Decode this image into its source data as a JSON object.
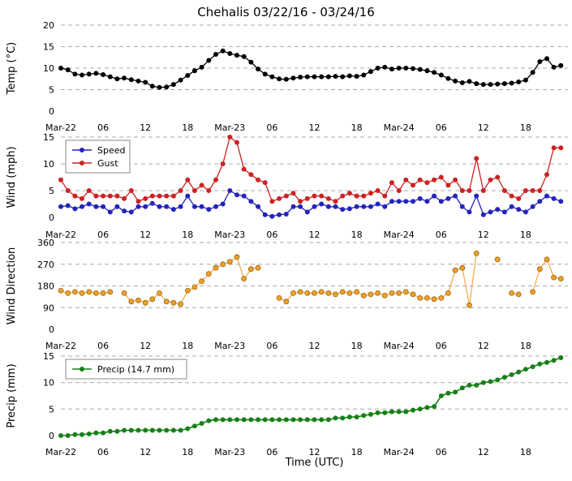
{
  "chart_data": {
    "type": "line",
    "title": "Chehalis 03/22/16 - 03/24/16",
    "xlabel": "Time (UTC)",
    "x_range": [
      0,
      72
    ],
    "x_ticks": [
      0,
      6,
      12,
      18,
      24,
      30,
      36,
      42,
      48,
      54,
      60,
      66
    ],
    "x_tick_labels": [
      "Mar-22",
      "06",
      "12",
      "18",
      "Mar-23",
      "06",
      "12",
      "18",
      "Mar-24",
      "06",
      "12",
      "18"
    ],
    "grid": "dashed-horizontal",
    "subplots": [
      {
        "name": "temperature",
        "ylabel": "Temp (°C)",
        "ylim": [
          0,
          20
        ],
        "yticks": [
          0,
          5,
          10,
          15,
          20
        ],
        "legend": null,
        "series": [
          {
            "name": "Temp",
            "color": "#000000",
            "values": [
              10.0,
              9.6,
              8.6,
              8.4,
              8.6,
              8.8,
              8.5,
              8.0,
              7.5,
              7.7,
              7.3,
              7.0,
              6.7,
              5.8,
              5.5,
              5.6,
              6.2,
              7.2,
              8.3,
              9.4,
              10.2,
              11.8,
              13.2,
              14.0,
              13.4,
              13.0,
              12.7,
              11.4,
              9.8,
              8.6,
              8.0,
              7.5,
              7.4,
              7.7,
              7.9,
              8.0,
              8.0,
              8.0,
              8.0,
              8.1,
              8.0,
              8.2,
              8.1,
              8.4,
              9.2,
              10.0,
              10.2,
              9.8,
              10.0,
              10.0,
              9.9,
              9.7,
              9.4,
              9.0,
              8.4,
              7.6,
              7.0,
              6.6,
              6.9,
              6.4,
              6.2,
              6.2,
              6.3,
              6.4,
              6.5,
              6.8,
              7.2,
              9.0,
              11.5,
              12.2,
              10.2,
              10.6
            ]
          }
        ]
      },
      {
        "name": "wind",
        "ylabel": "Wind (mph)",
        "ylim": [
          0,
          15
        ],
        "yticks": [
          0,
          5,
          10,
          15
        ],
        "legend": {
          "position": "top-left",
          "items": [
            "Speed",
            "Gust"
          ]
        },
        "series": [
          {
            "name": "Speed",
            "color": "#2424bb",
            "values": [
              2.0,
              2.2,
              1.6,
              2.0,
              2.5,
              2.0,
              2.0,
              1.0,
              2.0,
              1.2,
              1.0,
              2.0,
              2.0,
              2.6,
              2.0,
              2.0,
              1.5,
              2.0,
              4.0,
              2.0,
              2.0,
              1.5,
              2.0,
              2.5,
              5.0,
              4.2,
              4.0,
              3.0,
              2.0,
              0.5,
              0.2,
              0.5,
              0.6,
              2.0,
              2.0,
              1.0,
              2.0,
              2.5,
              2.0,
              2.0,
              1.5,
              1.6,
              2.0,
              2.0,
              2.0,
              2.5,
              2.0,
              3.0,
              3.0,
              3.0,
              3.0,
              3.5,
              3.0,
              4.0,
              3.0,
              3.5,
              4.0,
              2.0,
              1.0,
              4.0,
              0.5,
              1.0,
              1.5,
              1.0,
              2.0,
              1.5,
              1.0,
              2.0,
              3.0,
              4.0,
              3.5,
              3.0
            ]
          },
          {
            "name": "Gust",
            "color": "#cc2222",
            "values": [
              7.0,
              5.0,
              4.0,
              3.5,
              5.0,
              4.0,
              4.0,
              4.0,
              4.0,
              3.5,
              5.0,
              3.0,
              3.5,
              4.0,
              4.0,
              4.0,
              4.0,
              5.0,
              7.0,
              5.0,
              6.0,
              5.0,
              7.0,
              10.0,
              15.0,
              14.0,
              9.0,
              8.0,
              7.0,
              6.5,
              3.0,
              3.5,
              4.0,
              4.5,
              3.0,
              3.5,
              4.0,
              4.0,
              3.5,
              3.0,
              4.0,
              4.5,
              4.0,
              4.0,
              4.5,
              5.0,
              4.0,
              6.5,
              5.0,
              7.0,
              6.0,
              7.0,
              6.5,
              7.0,
              7.5,
              6.0,
              7.0,
              5.0,
              5.0,
              11.0,
              5.0,
              7.0,
              7.5,
              5.0,
              4.0,
              3.5,
              5.0,
              5.0,
              5.0,
              8.0,
              13.0,
              13.0
            ]
          }
        ]
      },
      {
        "name": "wind-direction",
        "ylabel": "Wind Direction",
        "ylim": [
          0,
          360
        ],
        "yticks": [
          0,
          90,
          180,
          270,
          360
        ],
        "legend": null,
        "series": [
          {
            "name": "Direction",
            "color": "#f0a030",
            "edge_color": "#9a6400",
            "marker_size": 3,
            "line_width": 1.1,
            "values": [
              160,
              150,
              155,
              150,
              155,
              150,
              150,
              155,
              null,
              150,
              115,
              120,
              110,
              125,
              150,
              115,
              110,
              105,
              160,
              175,
              200,
              230,
              255,
              270,
              280,
              300,
              210,
              250,
              255,
              null,
              null,
              130,
              115,
              150,
              155,
              150,
              150,
              155,
              150,
              145,
              155,
              150,
              155,
              140,
              145,
              150,
              140,
              150,
              150,
              155,
              145,
              130,
              130,
              125,
              130,
              150,
              245,
              255,
              100,
              315,
              null,
              null,
              290,
              null,
              150,
              145,
              null,
              155,
              250,
              290,
              215,
              210
            ]
          }
        ]
      },
      {
        "name": "precipitation",
        "ylabel": "Precip (mm)",
        "ylim": [
          0,
          15
        ],
        "yticks": [
          0,
          5,
          10,
          15
        ],
        "legend": {
          "position": "top-left",
          "items": [
            "Precip (14.7 mm)"
          ]
        },
        "total_mm": 14.7,
        "series": [
          {
            "name": "Precip (14.7 mm)",
            "color": "#168016",
            "line_width": 1.6,
            "values": [
              0.0,
              0.0,
              0.2,
              0.2,
              0.3,
              0.5,
              0.5,
              0.8,
              0.8,
              1.0,
              1.0,
              1.0,
              1.0,
              1.0,
              1.0,
              1.0,
              1.0,
              1.0,
              1.3,
              1.8,
              2.3,
              2.8,
              3.0,
              3.0,
              3.0,
              3.0,
              3.0,
              3.0,
              3.0,
              3.0,
              3.0,
              3.0,
              3.0,
              3.0,
              3.0,
              3.0,
              3.0,
              3.0,
              3.0,
              3.3,
              3.3,
              3.5,
              3.5,
              3.8,
              4.0,
              4.3,
              4.3,
              4.5,
              4.5,
              4.5,
              4.8,
              5.0,
              5.3,
              5.5,
              7.5,
              8.0,
              8.2,
              9.0,
              9.5,
              9.5,
              10.0,
              10.2,
              10.5,
              11.0,
              11.5,
              12.0,
              12.5,
              13.0,
              13.5,
              13.8,
              14.2,
              14.7
            ]
          }
        ]
      }
    ],
    "style": {
      "grid_color": "#a8a8a8",
      "background": "#ffffff",
      "legend_border": "#8a8a8a"
    }
  }
}
